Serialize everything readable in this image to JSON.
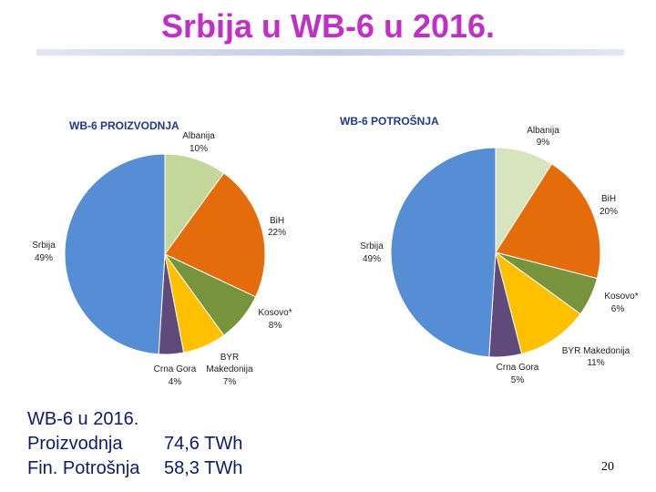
{
  "slide": {
    "title": "Srbija u WB-6 u 2016.",
    "page_number": "20",
    "summary": {
      "heading": "WB-6 u 2016.",
      "rows": [
        {
          "label": "Proizvodnja",
          "value": "74,6 TWh"
        },
        {
          "label": "Fin. Potrošnja",
          "value": "58,3 TWh"
        }
      ]
    }
  },
  "chart_data": [
    {
      "type": "pie",
      "title": "WB-6 PROIZVODNJA",
      "slices": [
        {
          "name": "Albanija",
          "label": "10%",
          "value": 10,
          "color": "#c4d79b"
        },
        {
          "name": "BiH",
          "label": "22%",
          "value": 22,
          "color": "#e46c0a"
        },
        {
          "name": "Kosovo*",
          "label": "8%",
          "value": 8,
          "color": "#77933c"
        },
        {
          "name": "BYR Makedonija",
          "label": "7%",
          "value": 7,
          "color": "#ffc000"
        },
        {
          "name": "Crna Gora",
          "label": "4%",
          "value": 4,
          "color": "#604a7b"
        },
        {
          "name": "Srbija",
          "label": "49%",
          "value": 49,
          "color": "#558ed5"
        }
      ]
    },
    {
      "type": "pie",
      "title": "WB-6 POTROŠNJA",
      "slices": [
        {
          "name": "Albanija",
          "label": "9%",
          "value": 9,
          "color": "#d7e4bd"
        },
        {
          "name": "BiH",
          "label": "20%",
          "value": 20,
          "color": "#e46c0a"
        },
        {
          "name": "Kosovo*",
          "label": "6%",
          "value": 6,
          "color": "#77933c"
        },
        {
          "name": "BYR Makedonija",
          "label": "11%",
          "value": 11,
          "color": "#ffc000"
        },
        {
          "name": "Crna Gora",
          "label": "5%",
          "value": 5,
          "color": "#604a7b"
        },
        {
          "name": "Srbija",
          "label": "49%",
          "value": 49,
          "color": "#558ed5"
        }
      ]
    }
  ]
}
